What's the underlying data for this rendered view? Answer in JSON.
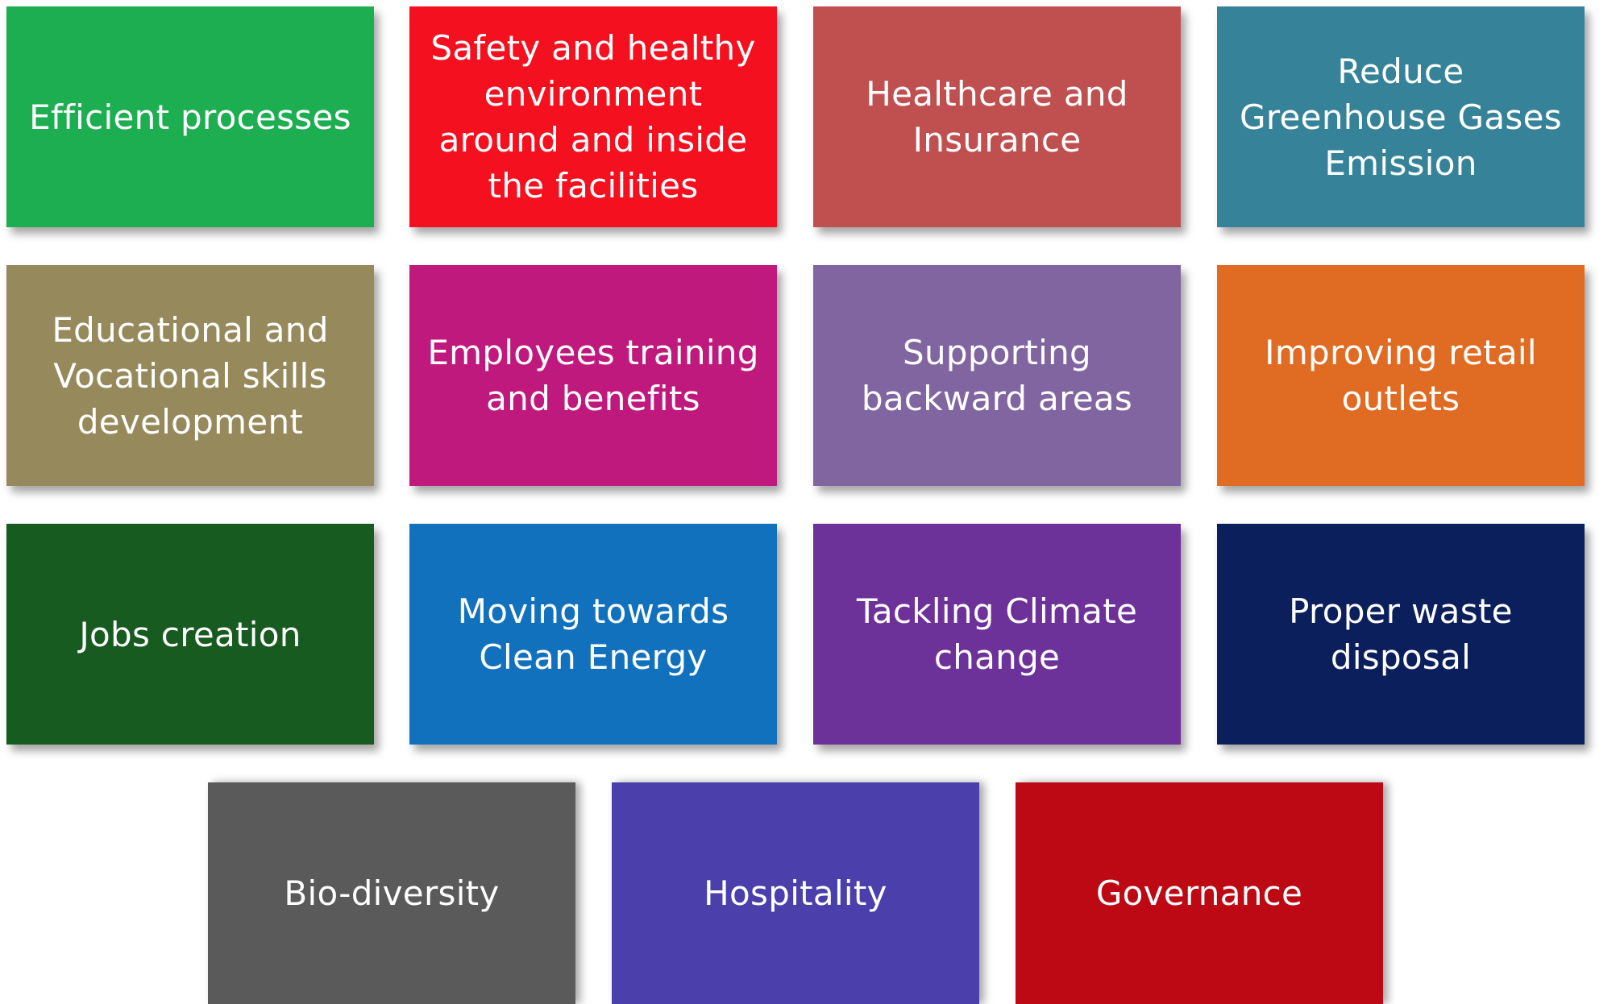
{
  "tiles": [
    {
      "label": "Efficient processes",
      "color": "#1eae52"
    },
    {
      "label": "Safety and healthy\nenvironment\naround and inside\nthe facilities",
      "color": "#f5101f"
    },
    {
      "label": "Healthcare and\nInsurance",
      "color": "#bf504f"
    },
    {
      "label": "Reduce\nGreenhouse Gases\nEmission",
      "color": "#368399"
    },
    {
      "label": "Educational and\nVocational skills\ndevelopment",
      "color": "#968a5c"
    },
    {
      "label": "Employees training\nand benefits",
      "color": "#c0197e"
    },
    {
      "label": "Supporting\nbackward areas",
      "color": "#8065a1"
    },
    {
      "label": "Improving retail\noutlets",
      "color": "#e06b22"
    },
    {
      "label": "Jobs creation",
      "color": "#175b20"
    },
    {
      "label": "Moving towards\nClean Energy",
      "color": "#1271bd"
    },
    {
      "label": "Tackling Climate\nchange",
      "color": "#6d319a"
    },
    {
      "label": "Proper waste\ndisposal",
      "color": "#0b1f5c"
    },
    {
      "label": "Bio-diversity",
      "color": "#5a5a5a"
    },
    {
      "label": "Hospitality",
      "color": "#4a3fab"
    },
    {
      "label": "Governance",
      "color": "#bd0913"
    }
  ]
}
